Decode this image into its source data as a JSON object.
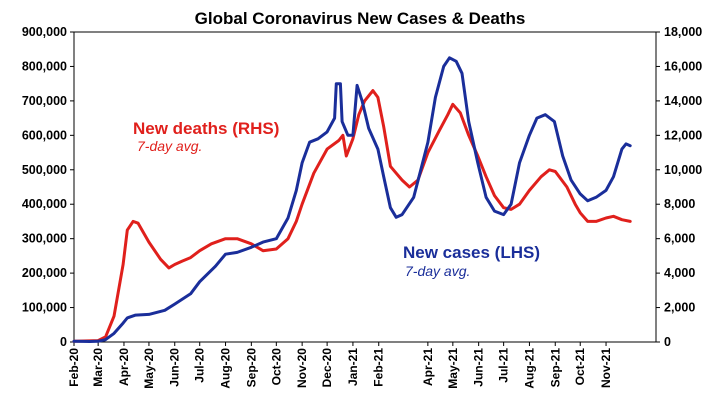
{
  "chart_data": {
    "type": "line",
    "title": "Global Coronavirus New Cases & Deaths",
    "colors": {
      "cases": "#1a2e9a",
      "deaths": "#e0201c",
      "axis": "#000000"
    },
    "y_left": {
      "min": 0,
      "max": 900000,
      "ticks": [
        "0",
        "100,000",
        "200,000",
        "300,000",
        "400,000",
        "500,000",
        "600,000",
        "700,000",
        "800,000",
        "900,000"
      ]
    },
    "y_right": {
      "min": 0,
      "max": 18000,
      "ticks": [
        "0",
        "2,000",
        "4,000",
        "6,000",
        "8,000",
        "10,000",
        "12,000",
        "14,000",
        "16,000",
        "18,000"
      ]
    },
    "x_range": [
      "2020-02-01",
      "2021-12-31"
    ],
    "x_ticks": [
      {
        "label": "Feb-20",
        "date": "2020-02-01"
      },
      {
        "label": "Mar-20",
        "date": "2020-03-01"
      },
      {
        "label": "Apr-20",
        "date": "2020-04-01"
      },
      {
        "label": "May-20",
        "date": "2020-05-01"
      },
      {
        "label": "Jun-20",
        "date": "2020-06-01"
      },
      {
        "label": "Jul-20",
        "date": "2020-07-01"
      },
      {
        "label": "Aug-20",
        "date": "2020-08-01"
      },
      {
        "label": "Sep-20",
        "date": "2020-09-01"
      },
      {
        "label": "Oct-20",
        "date": "2020-10-01"
      },
      {
        "label": "Nov-20",
        "date": "2020-11-01"
      },
      {
        "label": "Dec-20",
        "date": "2020-12-01"
      },
      {
        "label": "Jan-21",
        "date": "2021-01-01"
      },
      {
        "label": "Feb-21",
        "date": "2021-02-01"
      },
      {
        "label": "Apr-21",
        "date": "2021-04-01"
      },
      {
        "label": "May-21",
        "date": "2021-05-01"
      },
      {
        "label": "Jun-21",
        "date": "2021-06-01"
      },
      {
        "label": "Jul-21",
        "date": "2021-07-01"
      },
      {
        "label": "Aug-21",
        "date": "2021-08-01"
      },
      {
        "label": "Sep-21",
        "date": "2021-09-01"
      },
      {
        "label": "Oct-21",
        "date": "2021-10-01"
      },
      {
        "label": "Nov-21",
        "date": "2021-11-01"
      }
    ],
    "series": [
      {
        "name": "New cases (LHS)",
        "subtitle": "7-day avg.",
        "axis": "left",
        "points": [
          [
            "2020-02-01",
            2000
          ],
          [
            "2020-02-20",
            1500
          ],
          [
            "2020-03-01",
            2000
          ],
          [
            "2020-03-10",
            7000
          ],
          [
            "2020-03-20",
            25000
          ],
          [
            "2020-03-31",
            55000
          ],
          [
            "2020-04-05",
            70000
          ],
          [
            "2020-04-15",
            78000
          ],
          [
            "2020-05-01",
            80000
          ],
          [
            "2020-05-20",
            92000
          ],
          [
            "2020-06-01",
            110000
          ],
          [
            "2020-06-20",
            140000
          ],
          [
            "2020-07-01",
            175000
          ],
          [
            "2020-07-20",
            220000
          ],
          [
            "2020-08-01",
            255000
          ],
          [
            "2020-08-15",
            260000
          ],
          [
            "2020-09-01",
            275000
          ],
          [
            "2020-09-15",
            290000
          ],
          [
            "2020-10-01",
            300000
          ],
          [
            "2020-10-15",
            360000
          ],
          [
            "2020-10-25",
            440000
          ],
          [
            "2020-11-01",
            520000
          ],
          [
            "2020-11-10",
            580000
          ],
          [
            "2020-11-20",
            590000
          ],
          [
            "2020-12-01",
            610000
          ],
          [
            "2020-12-10",
            650000
          ],
          [
            "2020-12-12",
            750000
          ],
          [
            "2020-12-17",
            750000
          ],
          [
            "2020-12-19",
            640000
          ],
          [
            "2020-12-26",
            600000
          ],
          [
            "2021-01-01",
            600000
          ],
          [
            "2021-01-06",
            745000
          ],
          [
            "2021-01-12",
            700000
          ],
          [
            "2021-01-20",
            620000
          ],
          [
            "2021-01-31",
            560000
          ],
          [
            "2021-02-07",
            480000
          ],
          [
            "2021-02-15",
            390000
          ],
          [
            "2021-02-22",
            362000
          ],
          [
            "2021-03-01",
            370000
          ],
          [
            "2021-03-15",
            420000
          ],
          [
            "2021-04-01",
            580000
          ],
          [
            "2021-04-10",
            710000
          ],
          [
            "2021-04-20",
            800000
          ],
          [
            "2021-04-27",
            825000
          ],
          [
            "2021-05-05",
            815000
          ],
          [
            "2021-05-12",
            780000
          ],
          [
            "2021-05-20",
            640000
          ],
          [
            "2021-05-31",
            520000
          ],
          [
            "2021-06-10",
            420000
          ],
          [
            "2021-06-20",
            380000
          ],
          [
            "2021-07-01",
            370000
          ],
          [
            "2021-07-10",
            400000
          ],
          [
            "2021-07-20",
            520000
          ],
          [
            "2021-08-01",
            600000
          ],
          [
            "2021-08-10",
            650000
          ],
          [
            "2021-08-20",
            660000
          ],
          [
            "2021-08-31",
            640000
          ],
          [
            "2021-09-10",
            540000
          ],
          [
            "2021-09-20",
            470000
          ],
          [
            "2021-10-01",
            430000
          ],
          [
            "2021-10-10",
            410000
          ],
          [
            "2021-10-20",
            420000
          ],
          [
            "2021-11-01",
            440000
          ],
          [
            "2021-11-10",
            480000
          ],
          [
            "2021-11-20",
            560000
          ],
          [
            "2021-11-25",
            575000
          ],
          [
            "2021-11-30",
            570000
          ]
        ]
      },
      {
        "name": "New deaths (RHS)",
        "subtitle": "7-day avg.",
        "axis": "right",
        "points": [
          [
            "2020-02-01",
            40
          ],
          [
            "2020-03-01",
            80
          ],
          [
            "2020-03-10",
            300
          ],
          [
            "2020-03-20",
            1500
          ],
          [
            "2020-03-31",
            4500
          ],
          [
            "2020-04-05",
            6500
          ],
          [
            "2020-04-12",
            7000
          ],
          [
            "2020-04-18",
            6900
          ],
          [
            "2020-05-01",
            5800
          ],
          [
            "2020-05-15",
            4800
          ],
          [
            "2020-05-25",
            4300
          ],
          [
            "2020-06-01",
            4500
          ],
          [
            "2020-06-10",
            4700
          ],
          [
            "2020-06-20",
            4900
          ],
          [
            "2020-07-01",
            5300
          ],
          [
            "2020-07-15",
            5700
          ],
          [
            "2020-08-01",
            6000
          ],
          [
            "2020-08-15",
            6000
          ],
          [
            "2020-09-01",
            5700
          ],
          [
            "2020-09-15",
            5300
          ],
          [
            "2020-10-01",
            5400
          ],
          [
            "2020-10-15",
            6000
          ],
          [
            "2020-10-25",
            7000
          ],
          [
            "2020-11-01",
            8000
          ],
          [
            "2020-11-15",
            9800
          ],
          [
            "2020-12-01",
            11200
          ],
          [
            "2020-12-15",
            11700
          ],
          [
            "2020-12-20",
            12000
          ],
          [
            "2020-12-24",
            10800
          ],
          [
            "2021-01-01",
            11800
          ],
          [
            "2021-01-08",
            13200
          ],
          [
            "2021-01-15",
            14000
          ],
          [
            "2021-01-25",
            14600
          ],
          [
            "2021-01-31",
            14200
          ],
          [
            "2021-02-07",
            12500
          ],
          [
            "2021-02-15",
            10200
          ],
          [
            "2021-02-22",
            9800
          ],
          [
            "2021-03-01",
            9400
          ],
          [
            "2021-03-10",
            9000
          ],
          [
            "2021-03-20",
            9400
          ],
          [
            "2021-04-01",
            11000
          ],
          [
            "2021-04-15",
            12300
          ],
          [
            "2021-04-25",
            13200
          ],
          [
            "2021-05-01",
            13800
          ],
          [
            "2021-05-10",
            13300
          ],
          [
            "2021-05-20",
            12000
          ],
          [
            "2021-05-31",
            10800
          ],
          [
            "2021-06-10",
            9600
          ],
          [
            "2021-06-20",
            8500
          ],
          [
            "2021-07-01",
            7800
          ],
          [
            "2021-07-10",
            7700
          ],
          [
            "2021-07-20",
            8000
          ],
          [
            "2021-08-01",
            8800
          ],
          [
            "2021-08-15",
            9600
          ],
          [
            "2021-08-25",
            10000
          ],
          [
            "2021-09-01",
            9900
          ],
          [
            "2021-09-15",
            9000
          ],
          [
            "2021-09-25",
            8000
          ],
          [
            "2021-10-01",
            7500
          ],
          [
            "2021-10-10",
            7000
          ],
          [
            "2021-10-20",
            7000
          ],
          [
            "2021-11-01",
            7200
          ],
          [
            "2021-11-10",
            7300
          ],
          [
            "2021-11-20",
            7100
          ],
          [
            "2021-11-30",
            7000
          ]
        ]
      }
    ]
  }
}
